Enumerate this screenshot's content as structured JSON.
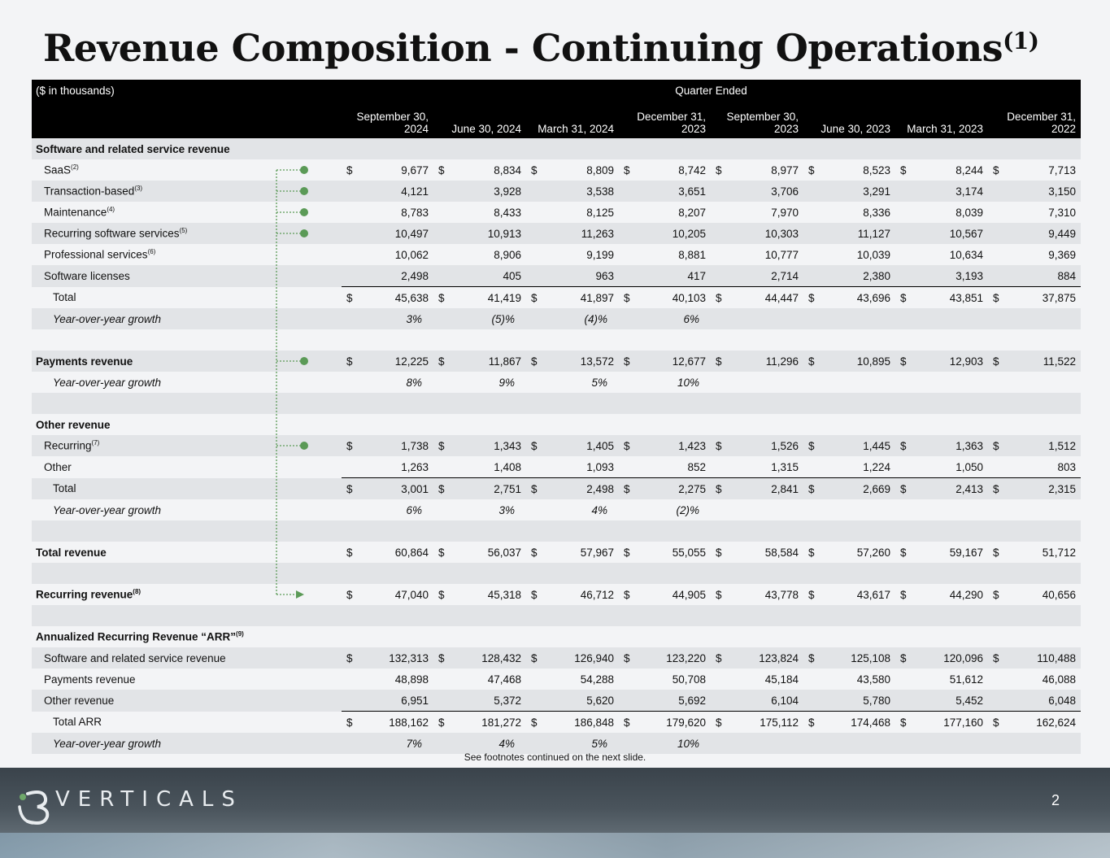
{
  "title": "Revenue Composition - Continuing Operations",
  "title_footnote": "(1)",
  "header": {
    "units": "($ in thousands)",
    "group": "Quarter Ended",
    "columns": [
      "September 30, 2024",
      "June 30, 2024",
      "March 31, 2024",
      "December 31, 2023",
      "September 30, 2023",
      "June 30, 2023",
      "March 31, 2023",
      "December 31, 2022"
    ]
  },
  "rows": [
    {
      "label": "Software and related service revenue",
      "type": "section"
    },
    {
      "label": "SaaS",
      "fn": "(2)",
      "type": "item",
      "dollar": true,
      "values": [
        "9,677",
        "8,834",
        "8,809",
        "8,742",
        "8,977",
        "8,523",
        "8,244",
        "7,713"
      ]
    },
    {
      "label": "Transaction-based",
      "fn": "(3)",
      "type": "item",
      "values": [
        "4,121",
        "3,928",
        "3,538",
        "3,651",
        "3,706",
        "3,291",
        "3,174",
        "3,150"
      ]
    },
    {
      "label": "Maintenance",
      "fn": "(4)",
      "type": "item",
      "values": [
        "8,783",
        "8,433",
        "8,125",
        "8,207",
        "7,970",
        "8,336",
        "8,039",
        "7,310"
      ]
    },
    {
      "label": "Recurring software services",
      "fn": "(5)",
      "type": "item",
      "values": [
        "10,497",
        "10,913",
        "11,263",
        "10,205",
        "10,303",
        "11,127",
        "10,567",
        "9,449"
      ]
    },
    {
      "label": "Professional services",
      "fn": "(6)",
      "type": "item",
      "values": [
        "10,062",
        "8,906",
        "9,199",
        "8,881",
        "10,777",
        "10,039",
        "10,634",
        "9,369"
      ]
    },
    {
      "label": "Software licenses",
      "type": "item",
      "values": [
        "2,498",
        "405",
        "963",
        "417",
        "2,714",
        "2,380",
        "3,193",
        "884"
      ]
    },
    {
      "label": "Total",
      "type": "total",
      "dollar": true,
      "values": [
        "45,638",
        "41,419",
        "41,897",
        "40,103",
        "44,447",
        "43,696",
        "43,851",
        "37,875"
      ]
    },
    {
      "label": "Year-over-year growth",
      "type": "growth",
      "values": [
        "3%",
        "(5)%",
        "(4)%",
        "6%",
        "",
        "",
        "",
        ""
      ]
    },
    {
      "label": "",
      "type": "blank"
    },
    {
      "label": "Payments revenue",
      "type": "sectionval",
      "dollar": true,
      "values": [
        "12,225",
        "11,867",
        "13,572",
        "12,677",
        "11,296",
        "10,895",
        "12,903",
        "11,522"
      ]
    },
    {
      "label": "Year-over-year growth",
      "type": "growth",
      "values": [
        "8%",
        "9%",
        "5%",
        "10%",
        "",
        "",
        "",
        ""
      ]
    },
    {
      "label": "",
      "type": "blank"
    },
    {
      "label": "Other revenue",
      "type": "section"
    },
    {
      "label": "Recurring",
      "fn": "(7)",
      "type": "item",
      "dollar": true,
      "values": [
        "1,738",
        "1,343",
        "1,405",
        "1,423",
        "1,526",
        "1,445",
        "1,363",
        "1,512"
      ]
    },
    {
      "label": "Other",
      "type": "item",
      "values": [
        "1,263",
        "1,408",
        "1,093",
        "852",
        "1,315",
        "1,224",
        "1,050",
        "803"
      ]
    },
    {
      "label": "Total",
      "type": "total",
      "dollar": true,
      "values": [
        "3,001",
        "2,751",
        "2,498",
        "2,275",
        "2,841",
        "2,669",
        "2,413",
        "2,315"
      ]
    },
    {
      "label": "Year-over-year growth",
      "type": "growth",
      "values": [
        "6%",
        "3%",
        "4%",
        "(2)%",
        "",
        "",
        "",
        ""
      ]
    },
    {
      "label": "",
      "type": "blank"
    },
    {
      "label": "Total revenue",
      "type": "sectionval",
      "dollar": true,
      "values": [
        "60,864",
        "56,037",
        "57,967",
        "55,055",
        "58,584",
        "57,260",
        "59,167",
        "51,712"
      ]
    },
    {
      "label": "",
      "type": "blank"
    },
    {
      "label": "Recurring revenue",
      "fn": "(8)",
      "type": "sectionval",
      "dollar": true,
      "values": [
        "47,040",
        "45,318",
        "46,712",
        "44,905",
        "43,778",
        "43,617",
        "44,290",
        "40,656"
      ]
    },
    {
      "label": "",
      "type": "blank"
    },
    {
      "label": "Annualized Recurring Revenue “ARR”",
      "fn": "(9)",
      "type": "section"
    },
    {
      "label": "Software and related service revenue",
      "type": "item",
      "dollar": true,
      "values": [
        "132,313",
        "128,432",
        "126,940",
        "123,220",
        "123,824",
        "125,108",
        "120,096",
        "110,488"
      ]
    },
    {
      "label": "Payments revenue",
      "type": "item",
      "values": [
        "48,898",
        "47,468",
        "54,288",
        "50,708",
        "45,184",
        "43,580",
        "51,612",
        "46,088"
      ]
    },
    {
      "label": "Other revenue",
      "type": "item",
      "values": [
        "6,951",
        "5,372",
        "5,620",
        "5,692",
        "6,104",
        "5,780",
        "5,452",
        "6,048"
      ]
    },
    {
      "label": "Total ARR",
      "type": "total",
      "dollar": true,
      "values": [
        "188,162",
        "181,272",
        "186,848",
        "179,620",
        "175,112",
        "174,468",
        "177,160",
        "162,624"
      ]
    },
    {
      "label": "Year-over-year growth",
      "type": "growth",
      "values": [
        "7%",
        "4%",
        "5%",
        "10%",
        "",
        "",
        "",
        ""
      ]
    }
  ],
  "dollar_sign": "$",
  "footnote": "See footnotes continued on the next slide.",
  "footer": {
    "logo_text": "VERTICALS",
    "page_number": "2"
  },
  "colors": {
    "header_bg": "#000000",
    "shade": "#e2e4e7",
    "connector": "#5b9a57"
  },
  "icons": [
    "i3-verticals-logo-icon",
    "connector-dot-icon",
    "connector-arrow-icon"
  ]
}
